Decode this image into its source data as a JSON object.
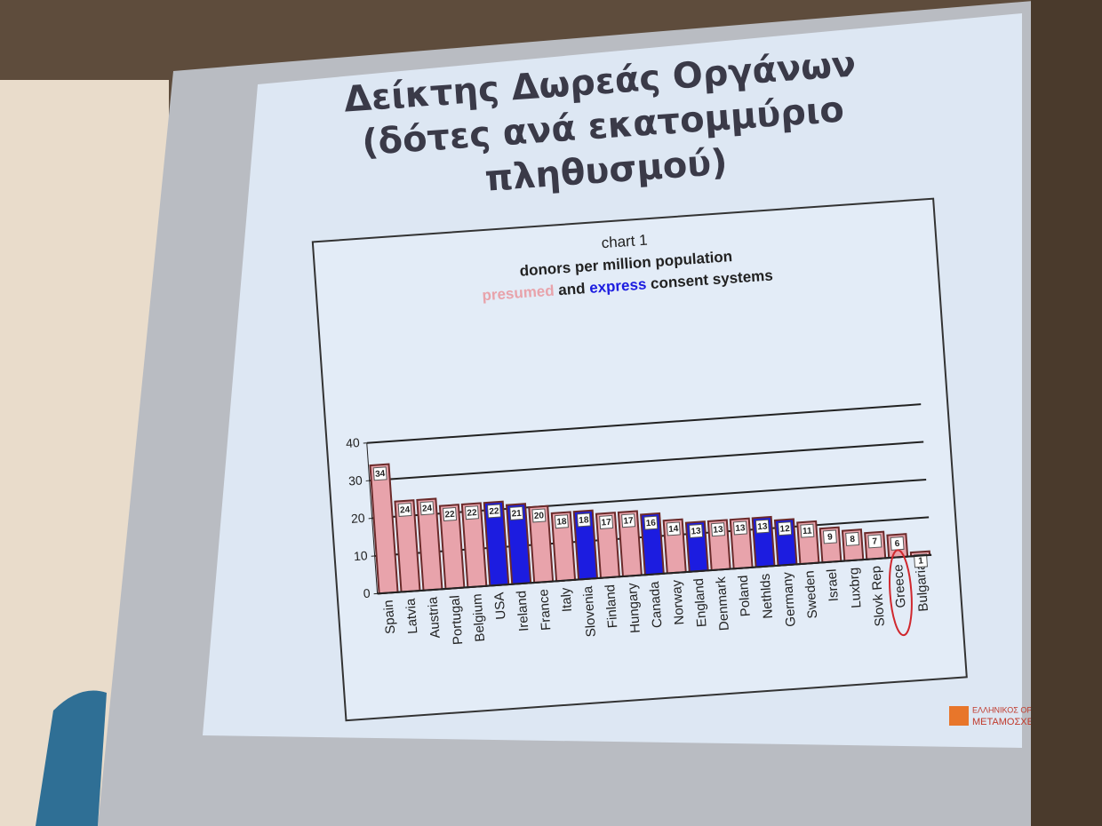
{
  "slide_title": [
    "Δείκτης Δωρεάς Οργάνων",
    "(δότες ανά εκατομμύριο",
    "πληθυσμού)"
  ],
  "logo": [
    "ΕΛΛΗΝΙΚΟΣ ΟΡΓΑΝΙΣ",
    "ΜΕΤΑΜΟΣΧΕΥΣΕ"
  ],
  "chart_data": {
    "type": "bar",
    "title": "chart 1",
    "subtitle": "donors per million population",
    "legend_joiner": "and",
    "legend_suffix": "consent systems",
    "categories": [
      "Spain",
      "Latvia",
      "Austria",
      "Portugal",
      "Belgium",
      "USA",
      "Ireland",
      "France",
      "Italy",
      "Slovenia",
      "Finland",
      "Hungary",
      "Canada",
      "Norway",
      "England",
      "Denmark",
      "Poland",
      "Nethlds",
      "Germany",
      "Sweden",
      "Israel",
      "Luxbrg",
      "Slovk Rep",
      "Greece",
      "Bulgaria"
    ],
    "series": [
      {
        "name": "presumed",
        "color": "#e8a3ab",
        "values": [
          34,
          24,
          24,
          22,
          22,
          null,
          null,
          20,
          18,
          null,
          17,
          17,
          null,
          14,
          null,
          13,
          13,
          null,
          null,
          11,
          9,
          8,
          7,
          6,
          1
        ]
      },
      {
        "name": "express",
        "color": "#1c1ce0",
        "values": [
          null,
          null,
          null,
          null,
          null,
          22,
          21,
          null,
          null,
          18,
          null,
          null,
          16,
          null,
          13,
          null,
          null,
          13,
          12,
          null,
          null,
          null,
          null,
          null,
          null
        ]
      }
    ],
    "ylim": [
      0,
      40
    ],
    "yticks": [
      0,
      10,
      20,
      30,
      40
    ],
    "grid": true
  }
}
